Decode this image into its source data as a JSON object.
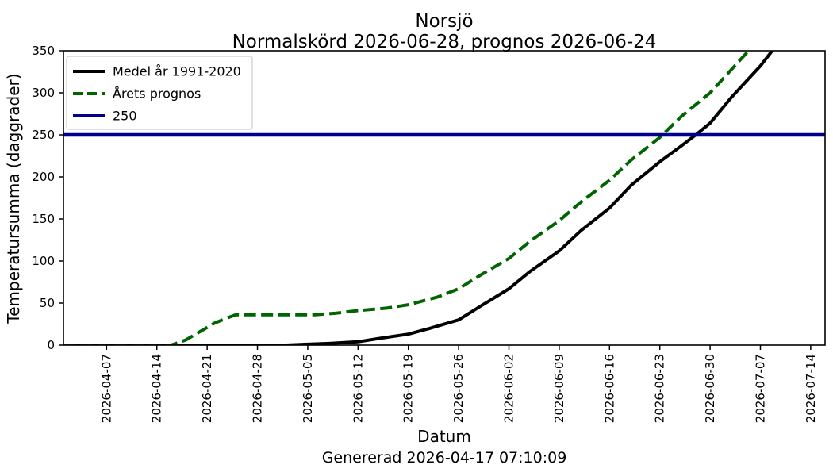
{
  "chart_data": {
    "type": "line",
    "title": "Norsjö",
    "subtitle": "Normalskörd 2026-06-28, prognos 2026-06-24",
    "xlabel": "Datum",
    "ylabel": "Temperatursumma (daggrader)",
    "footer": "Genererad 2026-04-17 07:10:09",
    "x_range": [
      "2026-04-01",
      "2026-07-16"
    ],
    "ylim": [
      0,
      350
    ],
    "yticks": [
      0,
      50,
      100,
      150,
      200,
      250,
      300,
      350
    ],
    "xticks": [
      "2026-04-07",
      "2026-04-14",
      "2026-04-21",
      "2026-04-28",
      "2026-05-05",
      "2026-05-12",
      "2026-05-19",
      "2026-05-26",
      "2026-06-02",
      "2026-06-09",
      "2026-06-16",
      "2026-06-23",
      "2026-06-30",
      "2026-07-07",
      "2026-07-14"
    ],
    "grid": false,
    "legend": {
      "position": "upper-left",
      "entries": [
        "Medel år 1991-2020",
        "Årets prognos",
        "250"
      ]
    },
    "colors": {
      "medel": "#000000",
      "prognos": "#006400",
      "threshold": "#00008b",
      "legend_border": "#cccccc"
    },
    "threshold": {
      "label": "250",
      "value": 250
    },
    "series": [
      {
        "name": "Medel år 1991-2020",
        "style": "solid",
        "color_key": "medel",
        "points": [
          [
            "2026-04-01",
            0
          ],
          [
            "2026-04-07",
            0
          ],
          [
            "2026-04-14",
            0
          ],
          [
            "2026-04-21",
            0
          ],
          [
            "2026-04-28",
            0
          ],
          [
            "2026-05-02",
            0
          ],
          [
            "2026-05-05",
            1
          ],
          [
            "2026-05-08",
            2
          ],
          [
            "2026-05-12",
            4
          ],
          [
            "2026-05-15",
            8
          ],
          [
            "2026-05-19",
            13
          ],
          [
            "2026-05-22",
            20
          ],
          [
            "2026-05-26",
            30
          ],
          [
            "2026-05-29",
            46
          ],
          [
            "2026-06-02",
            67
          ],
          [
            "2026-06-05",
            88
          ],
          [
            "2026-06-09",
            112
          ],
          [
            "2026-06-12",
            136
          ],
          [
            "2026-06-16",
            163
          ],
          [
            "2026-06-19",
            190
          ],
          [
            "2026-06-23",
            218
          ],
          [
            "2026-06-26",
            237
          ],
          [
            "2026-06-28",
            250
          ],
          [
            "2026-06-30",
            264
          ],
          [
            "2026-07-03",
            295
          ],
          [
            "2026-07-07",
            332
          ],
          [
            "2026-07-10",
            365
          ]
        ]
      },
      {
        "name": "Årets prognos",
        "style": "dashed",
        "color_key": "prognos",
        "points": [
          [
            "2026-04-01",
            0
          ],
          [
            "2026-04-07",
            0
          ],
          [
            "2026-04-14",
            0
          ],
          [
            "2026-04-16",
            0
          ],
          [
            "2026-04-18",
            6
          ],
          [
            "2026-04-20",
            16
          ],
          [
            "2026-04-22",
            26
          ],
          [
            "2026-04-24",
            33
          ],
          [
            "2026-04-25",
            36
          ],
          [
            "2026-04-28",
            36
          ],
          [
            "2026-05-02",
            36
          ],
          [
            "2026-05-06",
            36
          ],
          [
            "2026-05-09",
            38
          ],
          [
            "2026-05-12",
            41
          ],
          [
            "2026-05-16",
            44
          ],
          [
            "2026-05-19",
            48
          ],
          [
            "2026-05-23",
            57
          ],
          [
            "2026-05-26",
            67
          ],
          [
            "2026-05-29",
            83
          ],
          [
            "2026-06-02",
            103
          ],
          [
            "2026-06-05",
            124
          ],
          [
            "2026-06-09",
            148
          ],
          [
            "2026-06-12",
            170
          ],
          [
            "2026-06-16",
            196
          ],
          [
            "2026-06-19",
            220
          ],
          [
            "2026-06-23",
            247
          ],
          [
            "2026-06-26",
            272
          ],
          [
            "2026-06-30",
            300
          ],
          [
            "2026-07-03",
            328
          ],
          [
            "2026-07-06",
            356
          ]
        ]
      }
    ]
  }
}
